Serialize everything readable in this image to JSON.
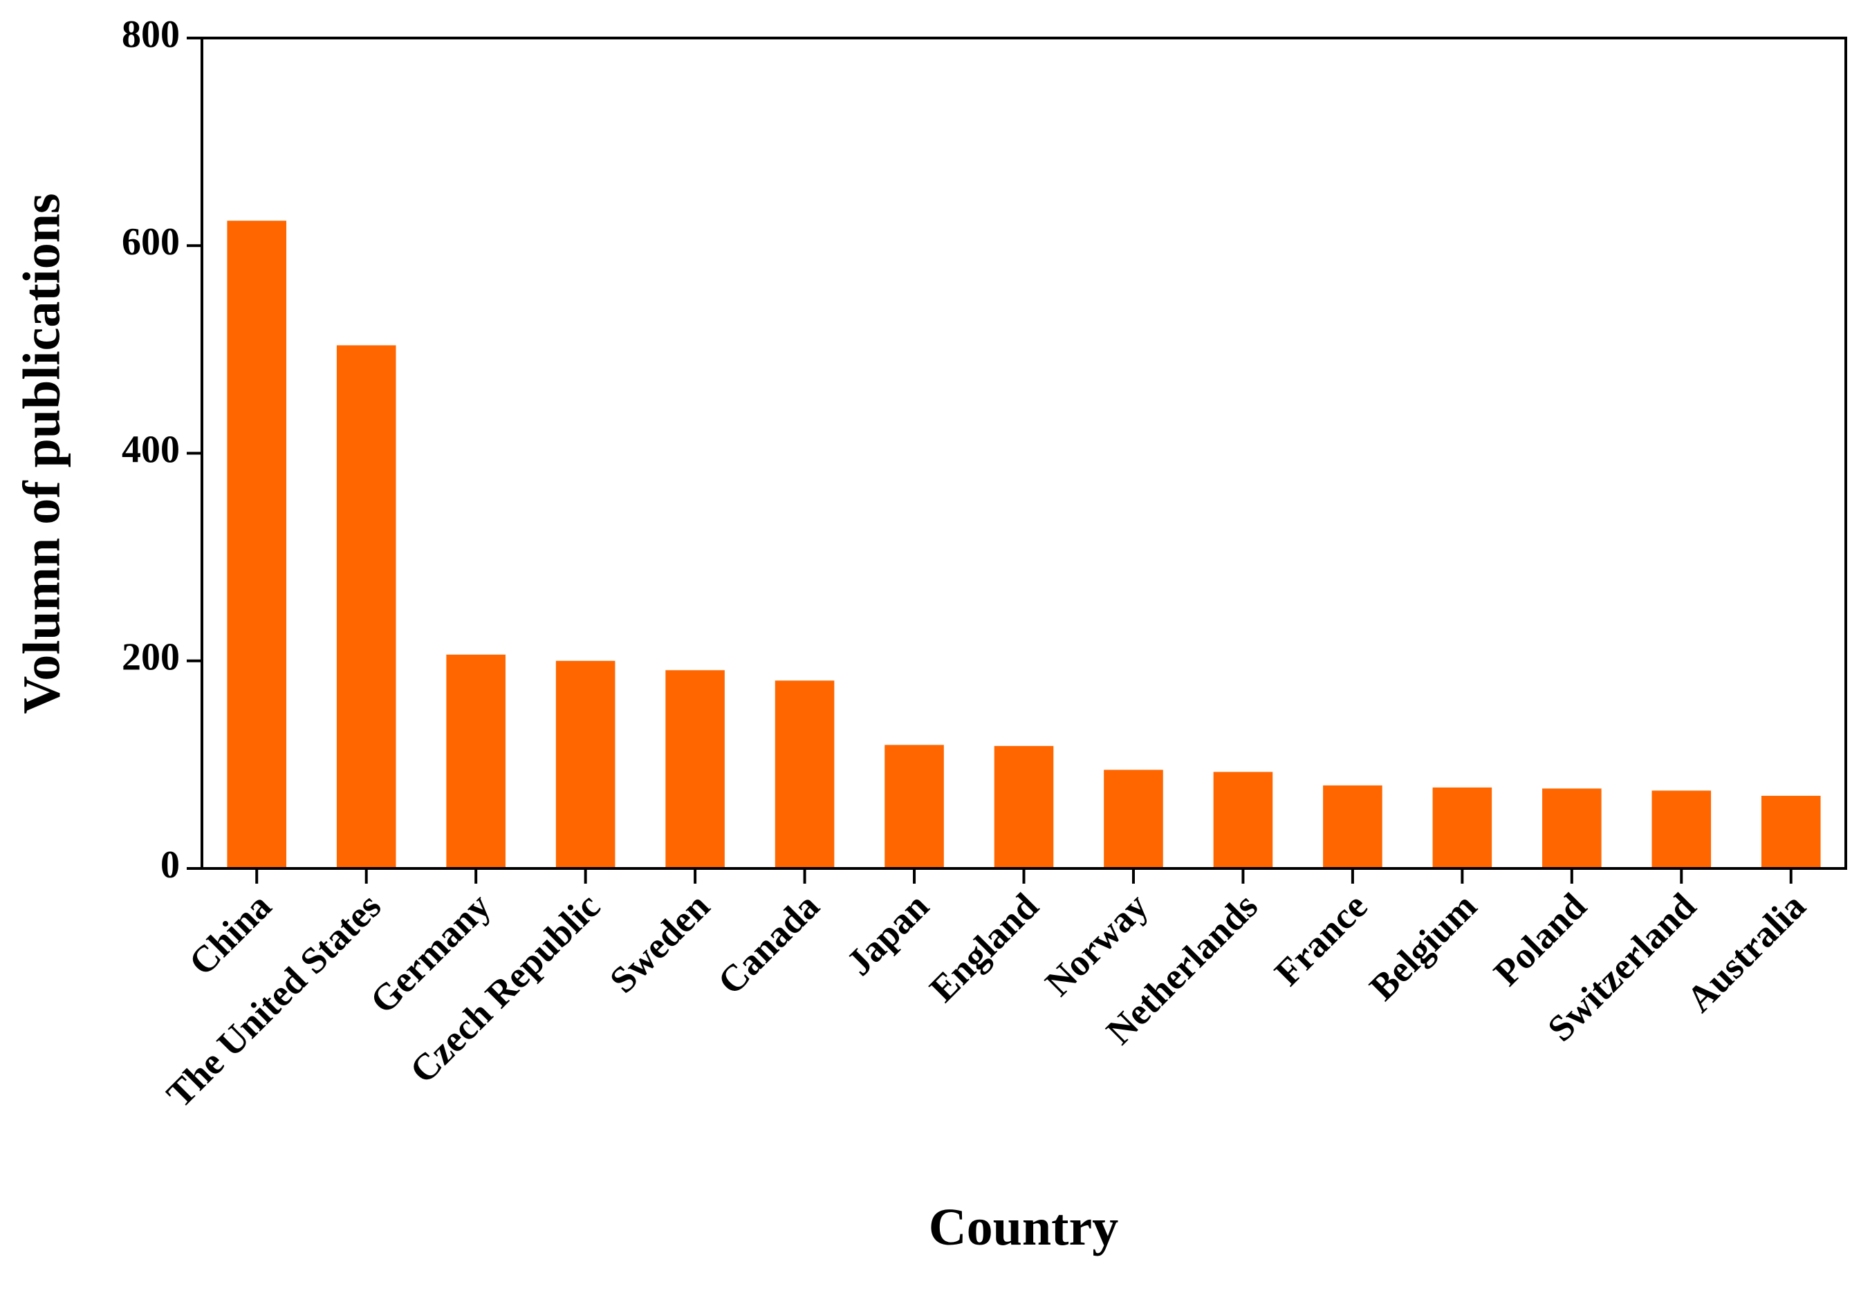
{
  "chart_data": {
    "type": "bar",
    "x_label": "Country",
    "y_label": "Volumn of publications",
    "categories": [
      "China",
      "The United States",
      "Germany",
      "Czech Republic",
      "Sweden",
      "Canada",
      "Japan",
      "England",
      "Norway",
      "Netherlands",
      "France",
      "Belgium",
      "Poland",
      "Switzerland",
      "Australia"
    ],
    "values": [
      624,
      504,
      206,
      200,
      191,
      181,
      119,
      118,
      95,
      93,
      80,
      78,
      77,
      75,
      70
    ],
    "color": "#ff6600",
    "ylim": [
      0,
      800
    ],
    "yticks": [
      0,
      200,
      400,
      600,
      800
    ],
    "grid": false
  }
}
